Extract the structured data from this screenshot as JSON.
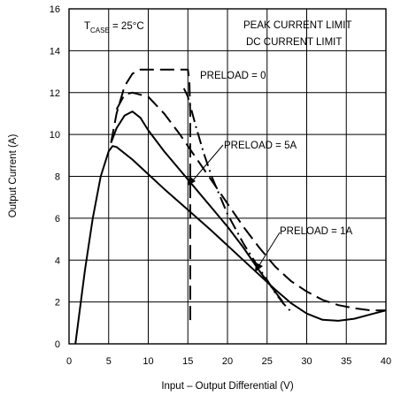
{
  "chart_data": {
    "type": "line",
    "xlabel": "Input – Output Differential  (V)",
    "ylabel": "Output Current  (A)",
    "xlim": [
      0,
      40
    ],
    "ylim": [
      0,
      16
    ],
    "x_ticks": [
      0,
      5,
      10,
      15,
      20,
      25,
      30,
      35,
      40
    ],
    "y_ticks": [
      0,
      2,
      4,
      6,
      8,
      10,
      12,
      14,
      16
    ],
    "grid": true,
    "condition_prefix": "T",
    "condition_subscript": "CASE",
    "condition_suffix": " = 25°C",
    "legend": [
      "PEAK CURRENT LIMIT",
      "DC CURRENT LIMIT"
    ],
    "legend_position": "top-right",
    "annotations": [
      "PRELOAD = 0",
      "PRELOAD = 5A",
      "PRELOAD = 1A"
    ],
    "series": [
      {
        "style": "solid",
        "points": [
          [
            0.8,
            0
          ],
          [
            2,
            3.5
          ],
          [
            3,
            6.0
          ],
          [
            4,
            8.0
          ],
          [
            5,
            9.2
          ],
          [
            5.5,
            9.45
          ],
          [
            6,
            9.4
          ],
          [
            8,
            8.8
          ],
          [
            10,
            8.1
          ],
          [
            12,
            7.4
          ],
          [
            15,
            6.4
          ],
          [
            18,
            5.4
          ],
          [
            20,
            4.7
          ],
          [
            22,
            4.0
          ],
          [
            24,
            3.3
          ],
          [
            26,
            2.6
          ],
          [
            28,
            1.95
          ],
          [
            30,
            1.45
          ],
          [
            32,
            1.15
          ],
          [
            34,
            1.1
          ],
          [
            36,
            1.2
          ],
          [
            38,
            1.4
          ],
          [
            40,
            1.6
          ]
        ]
      },
      {
        "style": "solid",
        "points": [
          [
            5.3,
            9.6
          ],
          [
            6,
            10.3
          ],
          [
            7,
            10.9
          ],
          [
            8,
            11.1
          ],
          [
            9,
            10.8
          ],
          [
            10,
            10.2
          ],
          [
            12,
            9.2
          ],
          [
            14,
            8.3
          ],
          [
            16,
            7.4
          ],
          [
            18,
            6.5
          ],
          [
            20,
            5.6
          ],
          [
            22,
            4.6
          ],
          [
            24,
            3.5
          ],
          [
            26,
            2.5
          ],
          [
            27,
            2.0
          ]
        ]
      },
      {
        "style": "long-dash",
        "points": [
          [
            5.3,
            9.6
          ],
          [
            6,
            11.0
          ],
          [
            7,
            12.3
          ],
          [
            8,
            12.9
          ],
          [
            9,
            13.1
          ],
          [
            15,
            13.1
          ],
          [
            15.2,
            12.5
          ],
          [
            15.3,
            11.0
          ],
          [
            15.3,
            9.0
          ],
          [
            15.3,
            7.0
          ],
          [
            15.3,
            4.0
          ],
          [
            15.3,
            1.1
          ]
        ]
      },
      {
        "style": "long-dash",
        "points": [
          [
            6,
            11.2
          ],
          [
            7,
            11.9
          ],
          [
            8,
            12.0
          ],
          [
            10,
            11.8
          ],
          [
            12,
            11.0
          ],
          [
            14,
            10.0
          ],
          [
            16,
            8.9
          ],
          [
            18,
            7.8
          ],
          [
            20,
            6.7
          ],
          [
            22,
            5.6
          ],
          [
            24,
            4.6
          ],
          [
            26,
            3.7
          ],
          [
            28,
            3.0
          ],
          [
            30,
            2.5
          ],
          [
            32,
            2.1
          ],
          [
            34,
            1.85
          ],
          [
            36,
            1.7
          ],
          [
            38,
            1.6
          ],
          [
            40,
            1.6
          ]
        ]
      },
      {
        "style": "dash-dot",
        "points": [
          [
            14.5,
            12.2
          ],
          [
            15,
            11.8
          ],
          [
            16,
            10.4
          ],
          [
            17,
            9.1
          ],
          [
            18,
            8.0
          ],
          [
            20,
            6.2
          ],
          [
            22,
            4.8
          ],
          [
            24,
            3.6
          ],
          [
            25,
            3.05
          ],
          [
            26,
            2.45
          ],
          [
            27,
            1.95
          ],
          [
            28,
            1.55
          ]
        ]
      }
    ]
  }
}
